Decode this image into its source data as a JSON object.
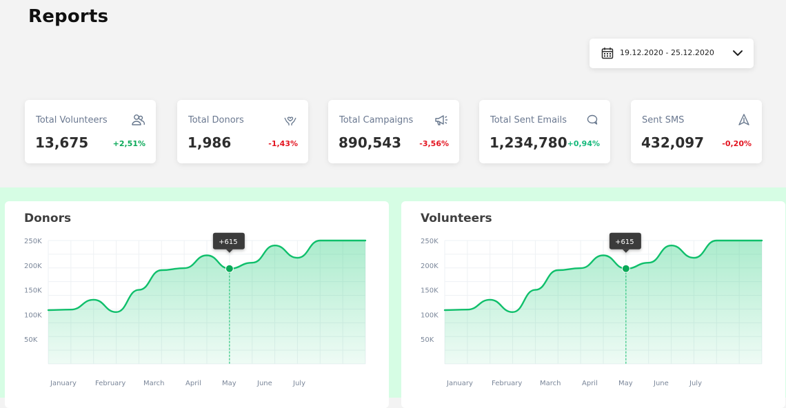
{
  "page": {
    "title": "Reports"
  },
  "date_range": {
    "value": "19.12.2020 - 25.12.2020",
    "icon": "calendar-icon"
  },
  "stats": [
    {
      "label": "Total Volunteers",
      "value": "13,675",
      "change": "+2,51%",
      "trend": "up",
      "icon": "users-icon"
    },
    {
      "label": "Total Donors",
      "value": "1,986",
      "change": "-1,43%",
      "trend": "down",
      "icon": "hands-heart-icon"
    },
    {
      "label": "Total Campaigns",
      "value": "890,543",
      "change": "-3,56%",
      "trend": "down",
      "icon": "megaphone-icon"
    },
    {
      "label": "Total Sent Emails",
      "value": "1,234,780",
      "change": "+0,94%",
      "trend": "up",
      "icon": "chat-bubble-icon"
    },
    {
      "label": "Sent SMS",
      "value": "432,097",
      "change": "-0,20%",
      "trend": "down",
      "icon": "send-icon"
    }
  ],
  "colors": {
    "line": "#0fbf6b",
    "positive": "#0aa958",
    "negative": "#e3131f",
    "band": "#d6fde4"
  },
  "chart_data": [
    {
      "type": "area",
      "title": "Donors",
      "y_ticks": [
        "250K",
        "200K",
        "150K",
        "100K",
        "50K"
      ],
      "x_ticks": [
        "January",
        "February",
        "March",
        "April",
        "May",
        "June",
        "July"
      ],
      "ylim": [
        0,
        250000
      ],
      "x": [
        0,
        0.5,
        1,
        1.5,
        2,
        2.5,
        3,
        3.5,
        4,
        4.5,
        5,
        5.5,
        6,
        6.5,
        7
      ],
      "values": [
        109000,
        110000,
        130000,
        105000,
        150000,
        190000,
        194000,
        220000,
        193000,
        205000,
        240000,
        215000,
        250000,
        250000,
        250000
      ],
      "annotation": {
        "label": "+615",
        "x": 4
      },
      "grid": true
    },
    {
      "type": "area",
      "title": "Volunteers",
      "y_ticks": [
        "250K",
        "200K",
        "150K",
        "100K",
        "50K"
      ],
      "x_ticks": [
        "January",
        "February",
        "March",
        "April",
        "May",
        "June",
        "July"
      ],
      "ylim": [
        0,
        250000
      ],
      "x": [
        0,
        0.5,
        1,
        1.5,
        2,
        2.5,
        3,
        3.5,
        4,
        4.5,
        5,
        5.5,
        6,
        6.5,
        7
      ],
      "values": [
        109000,
        110000,
        130000,
        105000,
        150000,
        190000,
        194000,
        220000,
        193000,
        205000,
        240000,
        215000,
        250000,
        250000,
        250000
      ],
      "annotation": {
        "label": "+615",
        "x": 4
      },
      "grid": true
    }
  ]
}
